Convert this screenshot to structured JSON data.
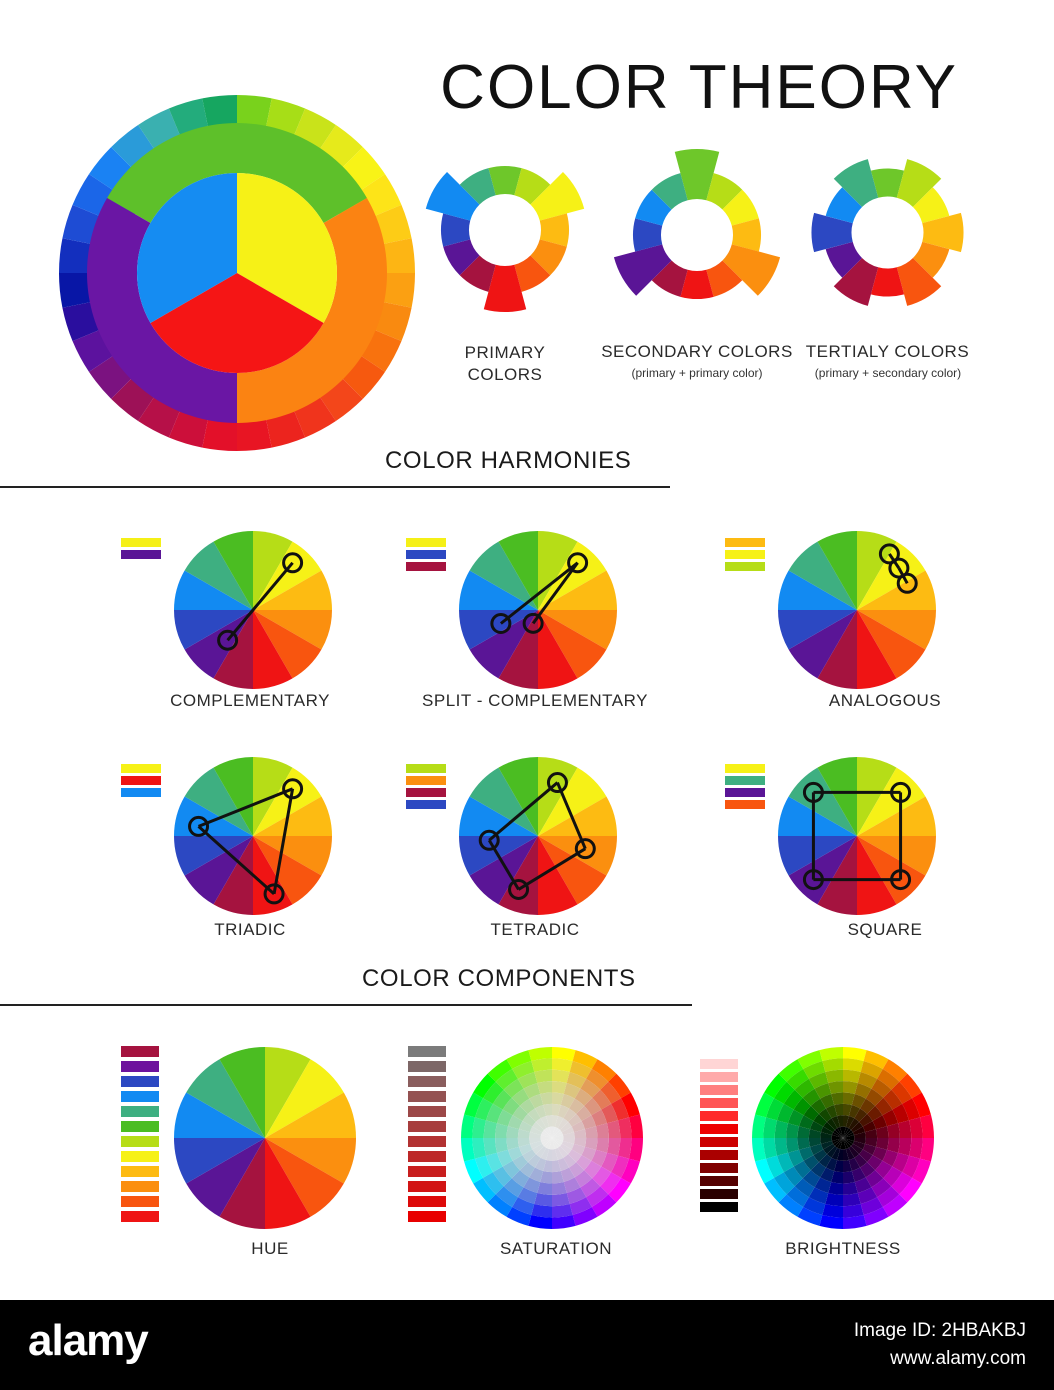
{
  "title": "COLOR THEORY",
  "palette": {
    "wheel12": [
      "#5ec02a",
      "#b6dd17",
      "#f6f117",
      "#fdc213",
      "#fb9d10",
      "#fa6e0e",
      "#f2301a",
      "#e41022",
      "#a9113e",
      "#6d129d",
      "#2b47c3",
      "#148cf2",
      "#3ab184",
      "#1fa94f"
    ],
    "harmony12": [
      "#b6dd17",
      "#f6f117",
      "#fdbb12",
      "#fb8f0f",
      "#f8550f",
      "#ef1414",
      "#a5133f",
      "#5a1596",
      "#2c48c2",
      "#128af2",
      "#3eaf81",
      "#4bbd22"
    ]
  },
  "top": {
    "primary_label_1": "PRIMARY",
    "primary_label_2": "COLORS",
    "secondary_label": "SECONDARY COLORS",
    "secondary_sub": "(primary + primary color)",
    "tertiary_label": "TERTIALY COLORS",
    "tertiary_sub": "(primary + secondary color)"
  },
  "harmonies": {
    "heading": "COLOR HARMONIES",
    "items": [
      {
        "label": "COMPLEMENTARY",
        "swatches": [
          "#f5f017",
          "#5a1596"
        ]
      },
      {
        "label": "SPLIT - COMPLEMENTARY",
        "swatches": [
          "#f5f017",
          "#2c48c2",
          "#a5133f"
        ]
      },
      {
        "label": "ANALOGOUS",
        "swatches": [
          "#fdbb12",
          "#f6f117",
          "#b6dd17"
        ]
      },
      {
        "label": "TRIADIC",
        "swatches": [
          "#f6f117",
          "#ef1414",
          "#128af2"
        ]
      },
      {
        "label": "TETRADIC",
        "swatches": [
          "#b6dd17",
          "#fb8f0f",
          "#a5133f",
          "#2c48c2"
        ]
      },
      {
        "label": "SQUARE",
        "swatches": [
          "#f6f117",
          "#3eaf81",
          "#5a1596",
          "#f8550f"
        ]
      }
    ]
  },
  "components": {
    "heading": "COLOR COMPONENTS",
    "hue_label": "HUE",
    "saturation_label": "SATURATION",
    "brightness_label": "BRIGHTNESS",
    "hue_bars": [
      "#a5133f",
      "#6d129d",
      "#2c48c2",
      "#128af2",
      "#3eaf81",
      "#4bbd22",
      "#b6dd17",
      "#f6f117",
      "#fdbb12",
      "#fb8f0f",
      "#f8550f",
      "#ef1414"
    ],
    "saturation_bars": [
      "#7b7b7b",
      "#7d6767",
      "#8a5d5d",
      "#945252",
      "#9c4848",
      "#a73d3d",
      "#b23232",
      "#bd2828",
      "#c81e1e",
      "#d21414",
      "#dd0a0a",
      "#e80000"
    ],
    "brightness_bars": [
      "#ffffff",
      "#ffd5d5",
      "#ffaaaa",
      "#ff7f7f",
      "#ff5555",
      "#ff2a2a",
      "#ee0000",
      "#cc0000",
      "#aa0000",
      "#800000",
      "#550000",
      "#2a0000",
      "#000000"
    ]
  },
  "footer": {
    "brand": "alamy",
    "image_id_label": "Image ID: 2HBAKBJ",
    "site": "www.alamy.com"
  }
}
